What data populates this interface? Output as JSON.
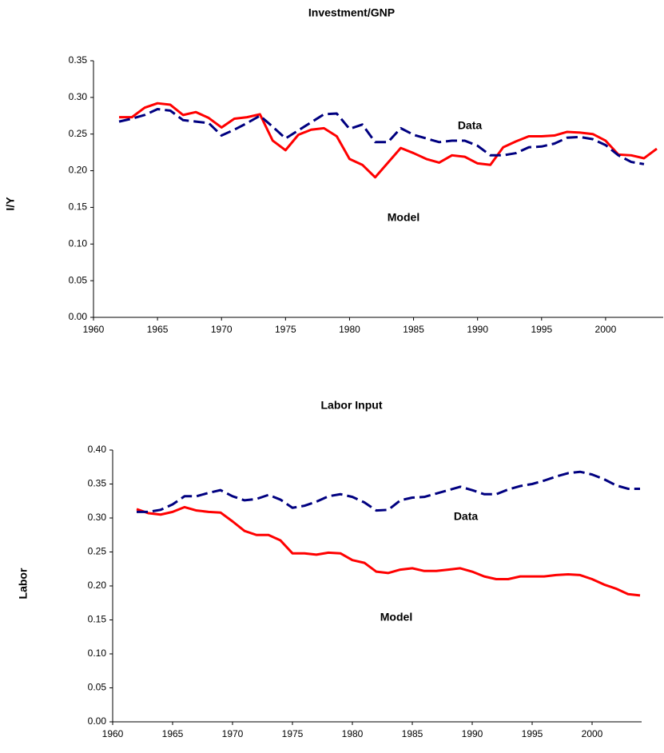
{
  "chart_data": [
    {
      "type": "line",
      "title": "Investment/GNP",
      "y_label": "I/Y",
      "x": [
        1962,
        1963,
        1964,
        1965,
        1966,
        1967,
        1968,
        1969,
        1970,
        1971,
        1972,
        1973,
        1974,
        1975,
        1976,
        1977,
        1978,
        1979,
        1980,
        1981,
        1982,
        1983,
        1984,
        1985,
        1986,
        1987,
        1988,
        1989,
        1990,
        1991,
        1992,
        1993,
        1994,
        1995,
        1996,
        1997,
        1998,
        1999,
        2000,
        2001,
        2002,
        2003,
        2004
      ],
      "series": [
        {
          "name": "Model",
          "color": "#ff0000",
          "dash": false,
          "values": [
            0.273,
            0.273,
            0.286,
            0.292,
            0.29,
            0.276,
            0.28,
            0.272,
            0.259,
            0.271,
            0.273,
            0.277,
            0.241,
            0.228,
            0.249,
            0.256,
            0.258,
            0.247,
            0.216,
            0.208,
            0.191,
            0.211,
            0.231,
            0.224,
            0.216,
            0.211,
            0.221,
            0.219,
            0.21,
            0.208,
            0.232,
            0.24,
            0.247,
            0.247,
            0.248,
            0.253,
            0.252,
            0.25,
            0.241,
            0.222,
            0.221,
            0.217,
            0.23
          ]
        },
        {
          "name": "Data",
          "color": "#000080",
          "dash": true,
          "values": [
            0.267,
            0.271,
            0.276,
            0.284,
            0.282,
            0.269,
            0.267,
            0.265,
            0.248,
            0.256,
            0.265,
            0.275,
            0.26,
            0.244,
            0.255,
            0.266,
            0.277,
            0.278,
            0.257,
            0.263,
            0.239,
            0.239,
            0.258,
            0.249,
            0.244,
            0.239,
            0.241,
            0.241,
            0.234,
            0.221,
            0.221,
            0.224,
            0.232,
            0.233,
            0.237,
            0.245,
            0.246,
            0.243,
            0.235,
            0.221,
            0.212,
            0.209,
            null
          ]
        }
      ],
      "xlim": [
        1960,
        2004
      ],
      "xticks": [
        1960,
        1965,
        1970,
        1975,
        1980,
        1985,
        1990,
        1995,
        2000
      ],
      "ylim": [
        0,
        0.35
      ],
      "yticks": [
        {
          "value": 0,
          "label": "0.00"
        },
        {
          "value": 0.05,
          "label": "0.05"
        },
        {
          "value": 0.1,
          "label": "0.10"
        },
        {
          "value": 0.15,
          "label": "0.15"
        },
        {
          "value": 0.2,
          "label": "0.20"
        },
        {
          "value": 0.25,
          "label": "0.25"
        },
        {
          "value": 0.3,
          "label": "0.30"
        },
        {
          "value": 0.35,
          "label": "0.35"
        }
      ]
    },
    {
      "type": "line",
      "title": "Labor Input",
      "y_label": "Labor",
      "x": [
        1962,
        1963,
        1964,
        1965,
        1966,
        1967,
        1968,
        1969,
        1970,
        1971,
        1972,
        1973,
        1974,
        1975,
        1976,
        1977,
        1978,
        1979,
        1980,
        1981,
        1982,
        1983,
        1984,
        1985,
        1986,
        1987,
        1988,
        1989,
        1990,
        1991,
        1992,
        1993,
        1994,
        1995,
        1996,
        1997,
        1998,
        1999,
        2000,
        2001,
        2002,
        2003,
        2004
      ],
      "series": [
        {
          "name": "Model",
          "color": "#ff0000",
          "dash": false,
          "values": [
            0.313,
            0.307,
            0.305,
            0.309,
            0.316,
            0.311,
            0.309,
            0.308,
            0.295,
            0.281,
            0.275,
            0.275,
            0.267,
            0.248,
            0.248,
            0.246,
            0.249,
            0.248,
            0.238,
            0.234,
            0.221,
            0.219,
            0.224,
            0.226,
            0.222,
            0.222,
            0.224,
            0.226,
            0.221,
            0.214,
            0.21,
            0.21,
            0.214,
            0.214,
            0.214,
            0.216,
            0.217,
            0.216,
            0.21,
            0.202,
            0.196,
            0.188,
            0.186
          ]
        },
        {
          "name": "Data",
          "color": "#000080",
          "dash": true,
          "values": [
            0.309,
            0.309,
            0.312,
            0.32,
            0.332,
            0.332,
            0.337,
            0.341,
            0.332,
            0.326,
            0.328,
            0.334,
            0.327,
            0.315,
            0.318,
            0.324,
            0.332,
            0.335,
            0.331,
            0.323,
            0.311,
            0.312,
            0.326,
            0.33,
            0.331,
            0.336,
            0.341,
            0.346,
            0.341,
            0.335,
            0.335,
            0.342,
            0.347,
            0.35,
            0.355,
            0.361,
            0.366,
            0.368,
            0.364,
            0.357,
            0.348,
            0.343,
            0.343
          ]
        }
      ],
      "xlim": [
        1960,
        2004
      ],
      "xticks": [
        1960,
        1965,
        1970,
        1975,
        1980,
        1985,
        1990,
        1995,
        2000
      ],
      "ylim": [
        0,
        0.4
      ],
      "yticks": [
        {
          "value": 0,
          "label": "0.00"
        },
        {
          "value": 0.05,
          "label": "0.05"
        },
        {
          "value": 0.1,
          "label": "0.10"
        },
        {
          "value": 0.15,
          "label": "0.15"
        },
        {
          "value": 0.2,
          "label": "0.20"
        },
        {
          "value": 0.25,
          "label": "0.25"
        },
        {
          "value": 0.3,
          "label": "0.30"
        },
        {
          "value": 0.35,
          "label": "0.35"
        },
        {
          "value": 0.4,
          "label": "0.40"
        }
      ]
    }
  ]
}
